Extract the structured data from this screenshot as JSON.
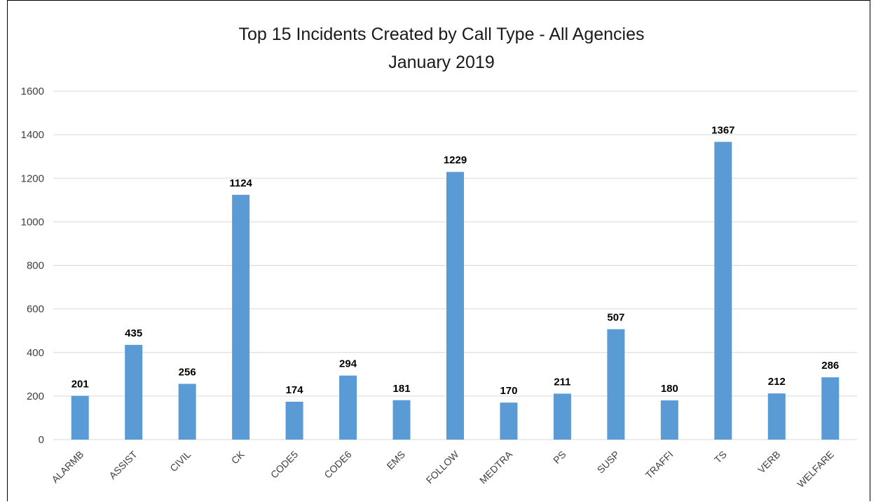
{
  "chart_data": {
    "type": "bar",
    "title": "Top 15 Incidents Created by Call Type - All Agencies",
    "subtitle": "January 2019",
    "categories": [
      "ALARMB",
      "ASSIST",
      "CIVIL",
      "CK",
      "CODE5",
      "CODE6",
      "EMS",
      "FOLLOW",
      "MEDTRA",
      "PS",
      "SUSP",
      "TRAFFI",
      "TS",
      "VERB",
      "WELFARE"
    ],
    "values": [
      201,
      435,
      256,
      1124,
      174,
      294,
      181,
      1229,
      170,
      211,
      507,
      180,
      1367,
      212,
      286
    ],
    "ylim": [
      0,
      1600
    ],
    "yticks": [
      0,
      200,
      400,
      600,
      800,
      1000,
      1200,
      1400,
      1600
    ],
    "grid": true,
    "legend": "none",
    "bar_color": "#5b9bd5",
    "grid_color": "#d9d9d9"
  }
}
